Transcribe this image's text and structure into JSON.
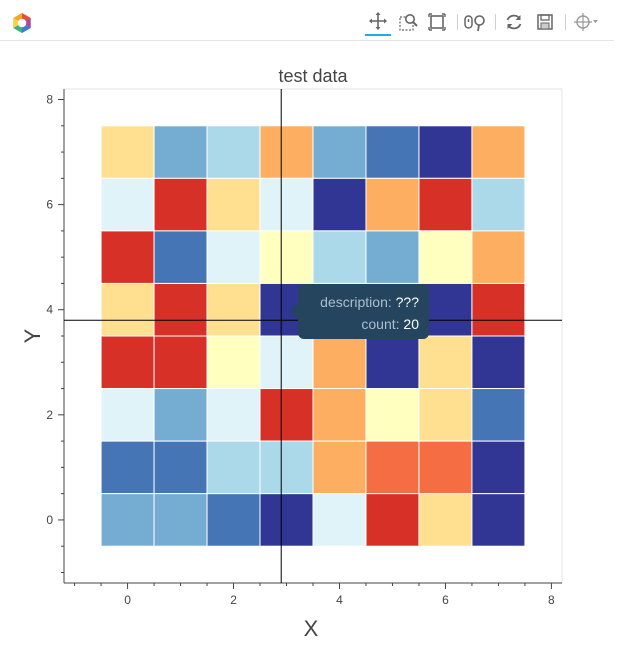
{
  "toolbar": {
    "tools": [
      {
        "name": "pan-tool",
        "icon": "pan-icon",
        "active": true
      },
      {
        "name": "box-zoom-tool",
        "icon": "box-zoom-icon",
        "active": false
      },
      {
        "name": "box-select-tool",
        "icon": "box-select-icon",
        "active": false
      },
      {
        "name": "wheel-zoom-tool",
        "icon": "wheel-zoom-icon",
        "active": false
      },
      {
        "name": "reset-tool",
        "icon": "reset-icon",
        "active": false
      },
      {
        "name": "save-tool",
        "icon": "save-icon",
        "active": false
      },
      {
        "name": "crosshair-tool",
        "icon": "crosshair-icon",
        "active": false
      }
    ]
  },
  "tooltip": {
    "description_label": "description:",
    "description_value": "???",
    "count_label": "count:",
    "count_value": "20"
  },
  "chart_data": {
    "type": "heatmap",
    "title": "test data",
    "xlabel": "X",
    "ylabel": "Y",
    "xlim": [
      -1.2,
      8.2
    ],
    "ylim": [
      -1.2,
      8.2
    ],
    "x_ticks": [
      0,
      2,
      4,
      6,
      8
    ],
    "y_ticks": [
      0,
      2,
      4,
      6,
      8
    ],
    "grid": false,
    "legend": "none",
    "crosshair": {
      "x": 2.9,
      "y": 3.8
    },
    "palette": [
      "#313695",
      "#4575b4",
      "#74add1",
      "#abd9e9",
      "#e0f3f8",
      "#ffffbf",
      "#fee090",
      "#fdae61",
      "#f46d43",
      "#d73027"
    ],
    "cell_size": 1,
    "grid_rows_top_to_bottom": [
      {
        "y": 7,
        "color_index": [
          6,
          2,
          3,
          7,
          2,
          1,
          0,
          7
        ]
      },
      {
        "y": 6,
        "color_index": [
          4,
          9,
          6,
          4,
          0,
          7,
          9,
          3
        ]
      },
      {
        "y": 5,
        "color_index": [
          9,
          1,
          4,
          5,
          3,
          2,
          5,
          7
        ]
      },
      {
        "y": 4,
        "color_index": [
          6,
          9,
          6,
          0,
          0,
          0,
          0,
          9
        ]
      },
      {
        "y": 3,
        "color_index": [
          9,
          9,
          5,
          4,
          7,
          0,
          6,
          0
        ]
      },
      {
        "y": 2,
        "color_index": [
          4,
          2,
          4,
          9,
          7,
          5,
          6,
          1
        ]
      },
      {
        "y": 1,
        "color_index": [
          1,
          1,
          3,
          3,
          7,
          8,
          8,
          0
        ]
      },
      {
        "y": 0,
        "color_index": [
          2,
          2,
          1,
          0,
          4,
          9,
          6,
          0
        ]
      }
    ],
    "x_values": [
      0,
      1,
      2,
      3,
      4,
      5,
      6,
      7
    ]
  }
}
